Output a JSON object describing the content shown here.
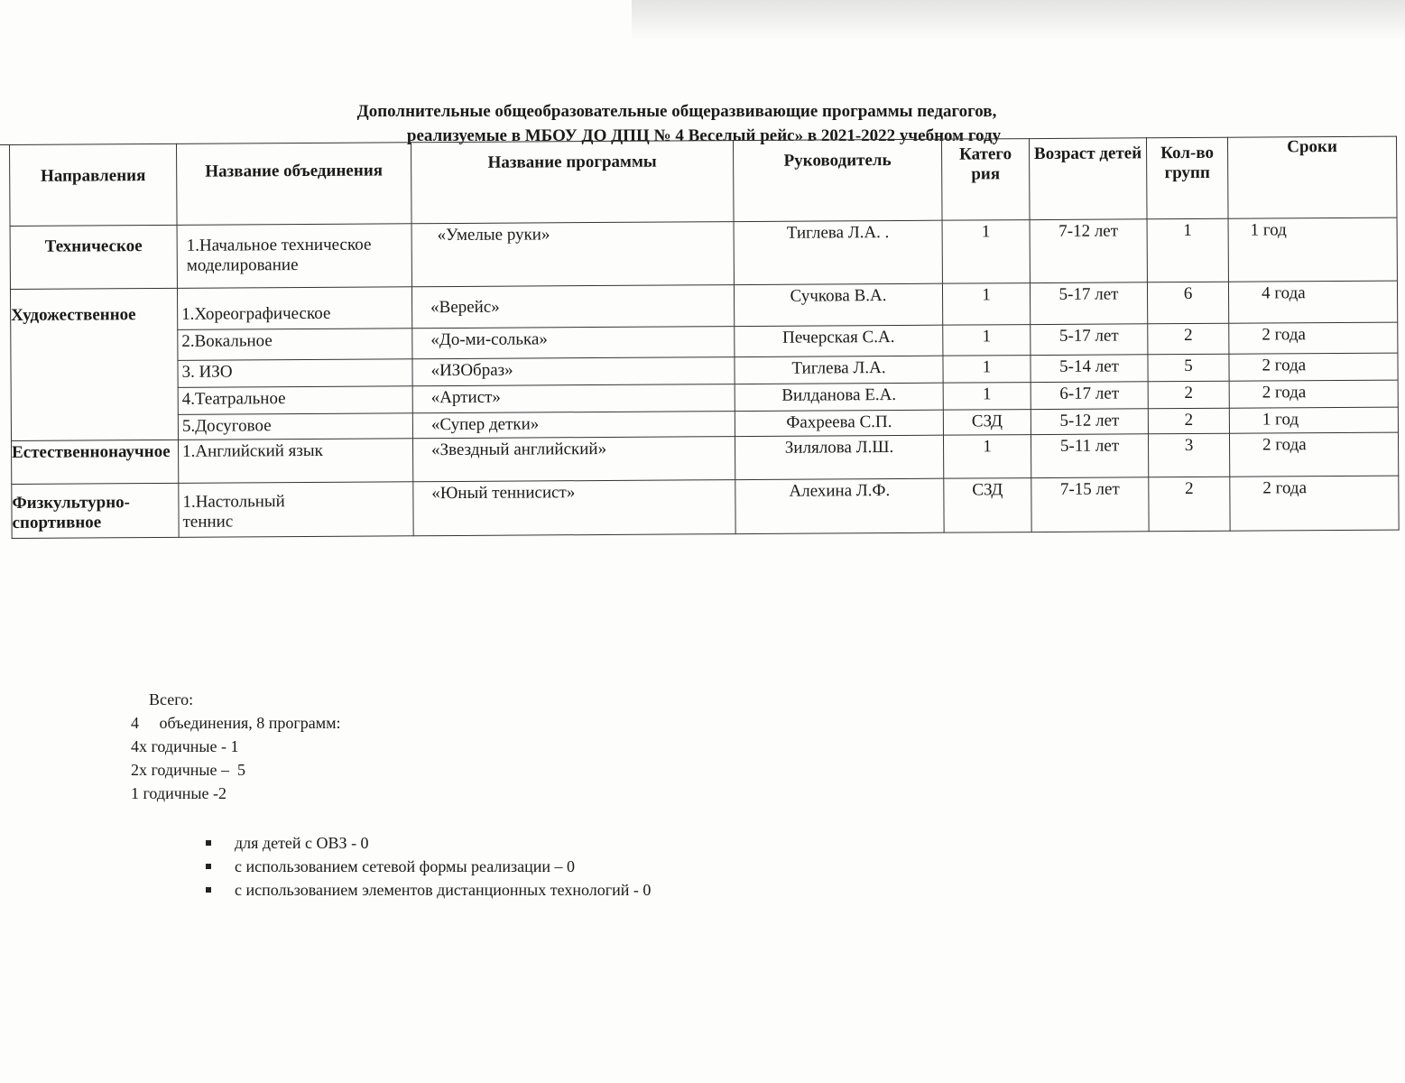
{
  "title_line1": "Дополнительные общеобразовательные общеразвивающие программы педагогов,",
  "title_line2": "реализуемые в МБОУ ДО ДПЦ № 4 Веселый рейс»  в  2021-2022 учебном году",
  "columns": [
    "Направления",
    "Название объединения",
    "Название программы",
    "Руководитель",
    "Катего рия",
    "Возраст детей",
    "Кол-во групп",
    "Сроки"
  ],
  "rows": [
    {
      "direction": "Техническое",
      "association": "1.Начальное техническое моделирование",
      "program": "«Умелые руки»",
      "leader": "Тиглева Л.А. .",
      "category": "1",
      "age": "7-12 лет",
      "groups": "1",
      "term": "1 год"
    },
    {
      "direction": "Художественное",
      "association": "1.Хореографическое",
      "program": "«Верейс»",
      "leader": "Сучкова В.А.",
      "category": "1",
      "age": "5-17 лет",
      "groups": "6",
      "term": "4 года"
    },
    {
      "direction": "",
      "association": "2.Вокальное",
      "program": "«До-ми-солька»",
      "leader": "Печерская С.А.",
      "category": "1",
      "age": "5-17 лет",
      "groups": "2",
      "term": "2 года"
    },
    {
      "direction": "",
      "association": "3. ИЗО",
      "program": "«ИЗОбраз»",
      "leader": "Тиглева Л.А.",
      "category": "1",
      "age": "5-14 лет",
      "groups": "5",
      "term": "2 года"
    },
    {
      "direction": "",
      "association": "4.Театральное",
      "program": "«Артист»",
      "leader": "Вилданова Е.А.",
      "category": "1",
      "age": "6-17 лет",
      "groups": "2",
      "term": "2 года"
    },
    {
      "direction": "",
      "association": "5.Досуговое",
      "program": "«Супер детки»",
      "leader": "Фахреева С.П.",
      "category": "СЗД",
      "age": "5-12 лет",
      "groups": "2",
      "term": "1 год"
    },
    {
      "direction": "Естественнонаучное",
      "association": "1.Английский язык",
      "program": "«Звездный английский»",
      "leader": "Зилялова Л.Ш.",
      "category": "1",
      "age": "5-11 лет",
      "groups": "3",
      "term": "2 года"
    },
    {
      "direction": "Физкультурно-спортивное",
      "association": "1.Настольный теннис",
      "program": "«Юный теннисист»",
      "leader": "Алехина Л.Ф.",
      "category": "СЗД",
      "age": "7-15 лет",
      "groups": "2",
      "term": "2 года"
    }
  ],
  "summary": {
    "total_label": "Всего:",
    "line1": "4     объединения, 8 программ:",
    "line2": "4х годичные - 1",
    "line3": "2х годичные –  5",
    "line4": "1 годичные -2"
  },
  "bullets": [
    "для детей с ОВЗ -  0",
    "с использованием сетевой формы реализации – 0",
    "с использованием элементов дистанционных технологий - 0"
  ]
}
